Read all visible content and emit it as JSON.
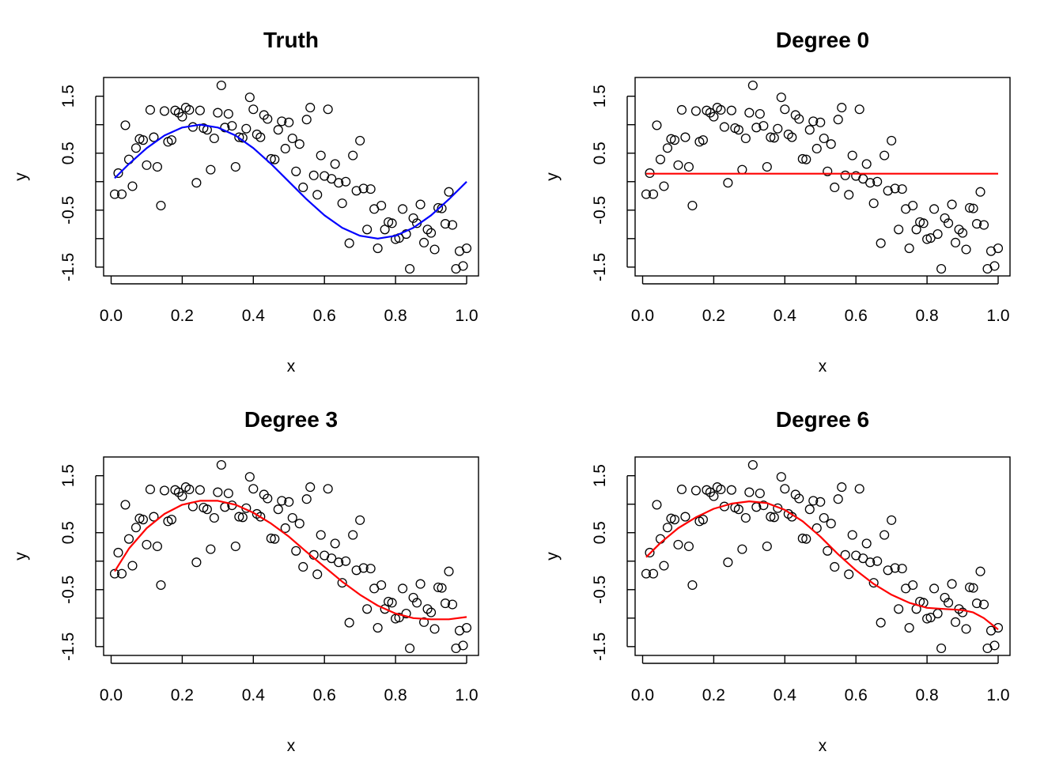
{
  "panels": [
    {
      "title": "Truth",
      "fit": "truth",
      "line_color": "#0000ff"
    },
    {
      "title": "Degree 0",
      "fit": "deg0",
      "line_color": "#ff0000"
    },
    {
      "title": "Degree 3",
      "fit": "deg3",
      "line_color": "#ff0000"
    },
    {
      "title": "Degree 6",
      "fit": "deg6",
      "line_color": "#ff0000"
    }
  ],
  "chart_data": [
    {
      "type": "scatter",
      "title": "Truth",
      "xlabel": "x",
      "ylabel": "y",
      "xlim": [
        0,
        1
      ],
      "ylim": [
        -1.6,
        1.6
      ],
      "xticks": [
        "0.0",
        "0.2",
        "0.4",
        "0.6",
        "0.8",
        "1.0"
      ],
      "yticks": [
        "-1.5",
        "-0.5",
        "0.5",
        "1.5"
      ],
      "line": {
        "x": [
          0.01,
          0.05,
          0.1,
          0.15,
          0.2,
          0.25,
          0.3,
          0.35,
          0.4,
          0.45,
          0.5,
          0.55,
          0.6,
          0.65,
          0.7,
          0.75,
          0.8,
          0.85,
          0.9,
          0.95,
          1.0
        ],
        "y": [
          0.06,
          0.31,
          0.59,
          0.81,
          0.95,
          1.0,
          0.95,
          0.81,
          0.59,
          0.31,
          0.0,
          -0.31,
          -0.59,
          -0.81,
          -0.95,
          -1.0,
          -0.95,
          -0.81,
          -0.59,
          -0.31,
          0.0
        ]
      },
      "points": {
        "x": [
          0.01,
          0.02,
          0.03,
          0.04,
          0.05,
          0.06,
          0.07,
          0.08,
          0.09,
          0.1,
          0.11,
          0.12,
          0.13,
          0.14,
          0.15,
          0.16,
          0.17,
          0.18,
          0.19,
          0.2,
          0.21,
          0.22,
          0.23,
          0.24,
          0.25,
          0.26,
          0.27,
          0.28,
          0.29,
          0.3,
          0.31,
          0.32,
          0.33,
          0.34,
          0.35,
          0.36,
          0.37,
          0.38,
          0.39,
          0.4,
          0.41,
          0.42,
          0.43,
          0.44,
          0.45,
          0.46,
          0.47,
          0.48,
          0.49,
          0.5,
          0.51,
          0.52,
          0.53,
          0.54,
          0.55,
          0.56,
          0.57,
          0.58,
          0.59,
          0.6,
          0.61,
          0.62,
          0.63,
          0.64,
          0.65,
          0.66,
          0.67,
          0.68,
          0.69,
          0.7,
          0.71,
          0.72,
          0.73,
          0.74,
          0.75,
          0.76,
          0.77,
          0.78,
          0.79,
          0.8,
          0.81,
          0.82,
          0.83,
          0.84,
          0.85,
          0.86,
          0.87,
          0.88,
          0.89,
          0.9,
          0.91,
          0.92,
          0.93,
          0.94,
          0.95,
          0.96,
          0.97,
          0.98,
          0.99,
          1.0
        ],
        "y": [
          -0.22,
          0.15,
          -0.22,
          0.99,
          0.39,
          -0.08,
          0.59,
          0.75,
          0.73,
          0.29,
          1.26,
          0.78,
          0.26,
          -0.42,
          1.24,
          0.7,
          0.73,
          1.25,
          1.21,
          1.14,
          1.3,
          1.26,
          0.96,
          -0.02,
          1.25,
          0.94,
          0.91,
          0.21,
          0.76,
          1.21,
          1.69,
          0.95,
          1.19,
          0.98,
          0.26,
          0.78,
          0.77,
          0.93,
          1.48,
          1.27,
          0.83,
          0.78,
          1.17,
          1.1,
          0.4,
          0.39,
          0.91,
          1.06,
          0.58,
          1.04,
          0.76,
          0.18,
          0.66,
          -0.1,
          1.09,
          1.3,
          0.11,
          -0.23,
          0.46,
          0.1,
          1.27,
          0.05,
          0.31,
          -0.02,
          -0.38,
          0.0,
          -1.08,
          0.46,
          -0.16,
          0.72,
          -0.12,
          -0.84,
          -0.13,
          -0.48,
          -1.17,
          -0.42,
          -0.84,
          -0.71,
          -0.73,
          -1.01,
          -0.99,
          -0.48,
          -0.92,
          -1.53,
          -0.64,
          -0.73,
          -0.4,
          -1.07,
          -0.84,
          -0.9,
          -1.19,
          -0.46,
          -0.47,
          -0.74,
          -0.18,
          -0.76,
          -1.53,
          -1.22,
          -1.48,
          -1.17
        ]
      }
    },
    {
      "type": "scatter",
      "title": "Degree 0",
      "xlabel": "x",
      "ylabel": "y",
      "xlim": [
        0,
        1
      ],
      "ylim": [
        -1.6,
        1.6
      ],
      "xticks": [
        "0.0",
        "0.2",
        "0.4",
        "0.6",
        "0.8",
        "1.0"
      ],
      "yticks": [
        "-1.5",
        "-0.5",
        "0.5",
        "1.5"
      ],
      "line": {
        "x": [
          0.01,
          1.0
        ],
        "y": [
          0.14,
          0.14
        ]
      }
    },
    {
      "type": "scatter",
      "title": "Degree 3",
      "xlabel": "x",
      "ylabel": "y",
      "xlim": [
        0,
        1
      ],
      "ylim": [
        -1.6,
        1.6
      ],
      "xticks": [
        "0.0",
        "0.2",
        "0.4",
        "0.6",
        "0.8",
        "1.0"
      ],
      "yticks": [
        "-1.5",
        "-0.5",
        "0.5",
        "1.5"
      ],
      "line": {
        "x": [
          0.01,
          0.05,
          0.1,
          0.15,
          0.2,
          0.25,
          0.3,
          0.35,
          0.4,
          0.45,
          0.5,
          0.55,
          0.6,
          0.65,
          0.7,
          0.75,
          0.8,
          0.85,
          0.9,
          0.95,
          1.0
        ],
        "y": [
          -0.18,
          0.22,
          0.58,
          0.83,
          0.99,
          1.06,
          1.06,
          0.99,
          0.85,
          0.66,
          0.43,
          0.16,
          -0.1,
          -0.36,
          -0.59,
          -0.78,
          -0.92,
          -1.0,
          -1.02,
          -1.02,
          -0.98
        ]
      }
    },
    {
      "type": "scatter",
      "title": "Degree 6",
      "xlabel": "x",
      "ylabel": "y",
      "xlim": [
        0,
        1
      ],
      "ylim": [
        -1.6,
        1.6
      ],
      "xticks": [
        "0.0",
        "0.2",
        "0.4",
        "0.6",
        "0.8",
        "1.0"
      ],
      "yticks": [
        "-1.5",
        "-0.5",
        "0.5",
        "1.5"
      ],
      "line": {
        "x": [
          0.01,
          0.05,
          0.1,
          0.15,
          0.2,
          0.25,
          0.3,
          0.35,
          0.4,
          0.45,
          0.5,
          0.55,
          0.6,
          0.65,
          0.7,
          0.75,
          0.8,
          0.85,
          0.9,
          0.93,
          0.96,
          0.98,
          1.0
        ],
        "y": [
          0.07,
          0.32,
          0.58,
          0.77,
          0.92,
          1.01,
          1.05,
          1.02,
          0.9,
          0.7,
          0.43,
          0.12,
          -0.16,
          -0.4,
          -0.59,
          -0.73,
          -0.82,
          -0.84,
          -0.86,
          -0.9,
          -1.0,
          -1.1,
          -1.2
        ]
      }
    }
  ]
}
